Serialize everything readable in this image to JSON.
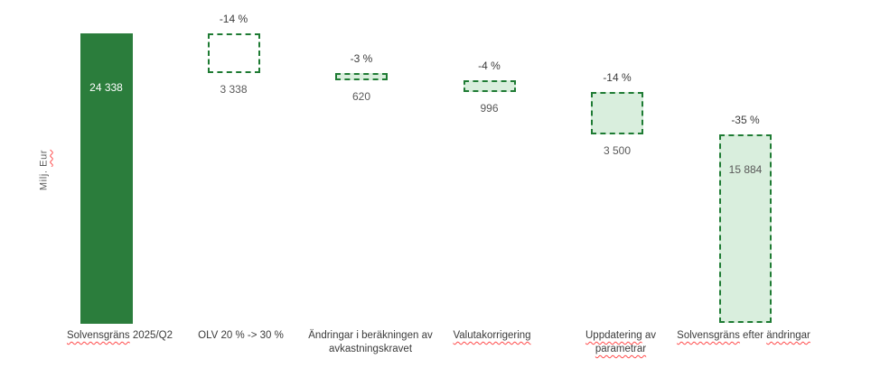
{
  "y_axis_label": {
    "segments": [
      {
        "text": "Milj. ",
        "misspelled": false
      },
      {
        "text": "Eur",
        "misspelled": true
      }
    ]
  },
  "chart_data": {
    "type": "bar",
    "subtype": "waterfall",
    "title": "",
    "ylabel": "Milj. Eur",
    "xlabel": "",
    "grid": false,
    "legend": false,
    "ylim": [
      0,
      24338
    ],
    "start_total": 24338,
    "end_total": 15884,
    "categories": [
      "Solvensgräns 2025/Q2",
      "OLV 20 % -> 30 %",
      "Ändringar i beräkningen av avkastningskravet",
      "Valutakorrigering",
      "Uppdatering av parametrar",
      "Solvensgräns efter ändringar"
    ],
    "values": [
      24338,
      -3338,
      -620,
      -996,
      -3500,
      15884
    ],
    "bars": [
      {
        "id": "solvensgrans-2025-q2",
        "kind": "total-start",
        "value": 24338,
        "value_label": "24 338",
        "pct": null,
        "pct_label": null,
        "fill": "solid",
        "value_placement": "inside",
        "label_lines": [
          [
            {
              "text": "Solvensgräns",
              "misspelled": true
            },
            {
              "text": " 2025/Q2",
              "misspelled": false
            }
          ]
        ]
      },
      {
        "id": "olv-20-to-30",
        "kind": "decrease",
        "value": 3338,
        "value_label": "3 338",
        "pct": -14,
        "pct_label": "-14 %",
        "fill": "none",
        "value_placement": "below",
        "label_lines": [
          [
            {
              "text": "OLV 20 % -> 30 %",
              "misspelled": false
            }
          ]
        ]
      },
      {
        "id": "andringar-i-berakningen-av-avkastningskravet",
        "kind": "decrease",
        "value": 620,
        "value_label": "620",
        "pct": -3,
        "pct_label": "-3 %",
        "fill": "light",
        "value_placement": "below",
        "label_lines": [
          [
            {
              "text": "Ändringar i beräkningen av",
              "misspelled": false
            }
          ],
          [
            {
              "text": "avkastningskravet",
              "misspelled": false
            }
          ]
        ]
      },
      {
        "id": "valutakorrigering",
        "kind": "decrease",
        "value": 996,
        "value_label": "996",
        "pct": -4,
        "pct_label": "-4 %",
        "fill": "light",
        "value_placement": "below",
        "label_lines": [
          [
            {
              "text": "Valutakorrigering",
              "misspelled": true
            }
          ]
        ]
      },
      {
        "id": "uppdatering-av-parametrar",
        "kind": "decrease",
        "value": 3500,
        "value_label": "3 500",
        "pct": -14,
        "pct_label": "-14 %",
        "fill": "light",
        "value_placement": "below",
        "label_lines": [
          [
            {
              "text": "Uppdatering",
              "misspelled": true
            },
            {
              "text": " av",
              "misspelled": false
            }
          ],
          [
            {
              "text": "parametrar",
              "misspelled": true
            }
          ]
        ]
      },
      {
        "id": "solvensgrans-efter-andringar",
        "kind": "total-end",
        "value": 15884,
        "value_label": "15 884",
        "pct": -35,
        "pct_label": "-35 %",
        "fill": "light",
        "value_placement": "inside",
        "label_lines": [
          [
            {
              "text": "Solvensgräns",
              "misspelled": true
            },
            {
              "text": " efter ",
              "misspelled": false
            },
            {
              "text": "ändringar",
              "misspelled": true
            }
          ]
        ]
      }
    ],
    "colors": {
      "solid_green": "#2b7d3c",
      "border_green": "#1e7b33",
      "light_green_fill": "#d9eedd",
      "value_text": "#595959",
      "pct_text": "#3b3b3b",
      "category_text": "#3b3b3b",
      "inside_value_on_solid": "#ffffff",
      "misspell_red": "#ff4a4a",
      "background": "#ffffff"
    }
  }
}
